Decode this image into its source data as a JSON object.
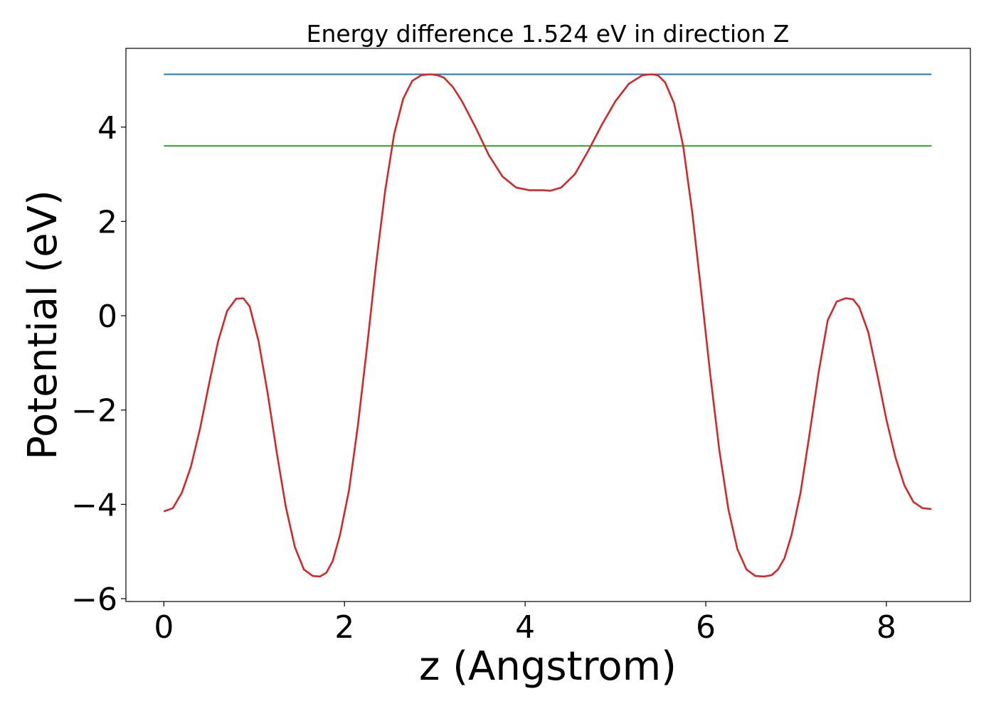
{
  "chart_data": {
    "type": "line",
    "title": "Energy difference 1.524 eV in direction Z",
    "xlabel": "z (Angstrom)",
    "ylabel": "Potential (eV)",
    "xlim": [
      -0.42,
      8.93
    ],
    "ylim": [
      -6.06,
      5.67
    ],
    "grid": false,
    "legend": "none",
    "x_ticks": [
      {
        "value": 0,
        "label": "0"
      },
      {
        "value": 2,
        "label": "2"
      },
      {
        "value": 4,
        "label": "4"
      },
      {
        "value": 6,
        "label": "6"
      },
      {
        "value": 8,
        "label": "8"
      }
    ],
    "y_ticks": [
      {
        "value": -6,
        "label": "−6"
      },
      {
        "value": -4,
        "label": "−4"
      },
      {
        "value": -2,
        "label": "−2"
      },
      {
        "value": 0,
        "label": "0"
      },
      {
        "value": 2,
        "label": "2"
      },
      {
        "value": 4,
        "label": "4"
      }
    ],
    "series": [
      {
        "color": "#1f77b4",
        "x": [
          0,
          8.5
        ],
        "y": [
          5.12,
          5.12
        ]
      },
      {
        "color": "#2ca02c",
        "x": [
          0,
          8.5
        ],
        "y": [
          3.6,
          3.6
        ]
      },
      {
        "color": "#d62728",
        "x": [
          0,
          0.1,
          0.2,
          0.3,
          0.4,
          0.5,
          0.6,
          0.7,
          0.8,
          0.88,
          0.95,
          1.05,
          1.15,
          1.25,
          1.35,
          1.45,
          1.55,
          1.65,
          1.73,
          1.8,
          1.87,
          1.95,
          2.05,
          2.15,
          2.25,
          2.35,
          2.45,
          2.55,
          2.65,
          2.75,
          2.85,
          2.95,
          3.03,
          3.1,
          3.2,
          3.3,
          3.45,
          3.6,
          3.75,
          3.9,
          4.05,
          4.2,
          4.28,
          4.4,
          4.55,
          4.7,
          4.85,
          5.0,
          5.15,
          5.3,
          5.4,
          5.47,
          5.55,
          5.65,
          5.75,
          5.85,
          5.95,
          6.05,
          6.15,
          6.25,
          6.35,
          6.45,
          6.55,
          6.65,
          6.73,
          6.8,
          6.87,
          6.95,
          7.05,
          7.15,
          7.25,
          7.35,
          7.45,
          7.55,
          7.63,
          7.7,
          7.8,
          7.9,
          8.0,
          8.1,
          8.2,
          8.3,
          8.4,
          8.5
        ],
        "y": [
          -4.15,
          -4.08,
          -3.75,
          -3.2,
          -2.4,
          -1.45,
          -0.55,
          0.1,
          0.36,
          0.37,
          0.2,
          -0.55,
          -1.65,
          -2.9,
          -4.05,
          -4.9,
          -5.38,
          -5.52,
          -5.53,
          -5.45,
          -5.2,
          -4.65,
          -3.7,
          -2.3,
          -0.65,
          1.1,
          2.65,
          3.85,
          4.6,
          4.98,
          5.1,
          5.12,
          5.1,
          5.05,
          4.85,
          4.55,
          4.0,
          3.4,
          2.95,
          2.72,
          2.66,
          2.66,
          2.65,
          2.72,
          3.0,
          3.5,
          4.05,
          4.55,
          4.92,
          5.1,
          5.12,
          5.1,
          4.95,
          4.5,
          3.6,
          2.2,
          0.5,
          -1.25,
          -2.85,
          -4.1,
          -4.95,
          -5.38,
          -5.52,
          -5.53,
          -5.5,
          -5.38,
          -5.15,
          -4.65,
          -3.75,
          -2.5,
          -1.2,
          -0.1,
          0.3,
          0.37,
          0.35,
          0.18,
          -0.35,
          -1.25,
          -2.2,
          -3.0,
          -3.6,
          -3.95,
          -4.08,
          -4.1
        ]
      }
    ]
  }
}
